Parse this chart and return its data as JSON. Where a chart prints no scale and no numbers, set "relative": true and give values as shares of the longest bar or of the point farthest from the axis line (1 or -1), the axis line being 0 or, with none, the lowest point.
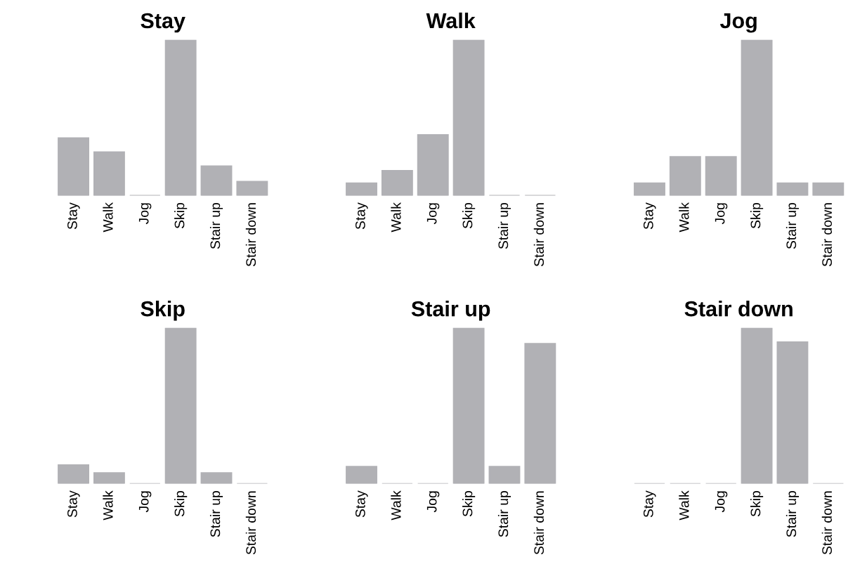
{
  "chart_data": [
    {
      "type": "bar",
      "title": "Stay",
      "relative": true,
      "categories": [
        "Stay",
        "Walk",
        "Jog",
        "Skip",
        "Stair up",
        "Stair down"
      ],
      "values": [
        0.37,
        0.28,
        0,
        1,
        0.19,
        0.09
      ],
      "color": "#b1b1b5"
    },
    {
      "type": "bar",
      "title": "Walk",
      "relative": true,
      "categories": [
        "Stay",
        "Walk",
        "Jog",
        "Skip",
        "Stair up",
        "Stair down"
      ],
      "values": [
        0.08,
        0.16,
        0.39,
        1,
        0,
        0
      ],
      "color": "#b1b1b5"
    },
    {
      "type": "bar",
      "title": "Jog",
      "relative": true,
      "categories": [
        "Stay",
        "Walk",
        "Jog",
        "Skip",
        "Stair up",
        "Stair down"
      ],
      "values": [
        0.08,
        0.25,
        0.25,
        1,
        0.08,
        0.08
      ],
      "color": "#b1b1b5"
    },
    {
      "type": "bar",
      "title": "Skip",
      "relative": true,
      "categories": [
        "Stay",
        "Walk",
        "Jog",
        "Skip",
        "Stair up",
        "Stair down"
      ],
      "values": [
        0.12,
        0.07,
        0,
        1,
        0.07,
        0
      ],
      "color": "#b1b1b5"
    },
    {
      "type": "bar",
      "title": "Stair up",
      "relative": true,
      "categories": [
        "Stay",
        "Walk",
        "Jog",
        "Skip",
        "Stair up",
        "Stair down"
      ],
      "values": [
        0.11,
        0,
        0,
        1,
        0.11,
        0.9
      ],
      "color": "#b1b1b5"
    },
    {
      "type": "bar",
      "title": "Stair down",
      "relative": true,
      "categories": [
        "Stay",
        "Walk",
        "Jog",
        "Skip",
        "Stair up",
        "Stair down"
      ],
      "values": [
        0,
        0,
        0,
        1,
        0.91,
        0
      ],
      "color": "#b1b1b5"
    }
  ]
}
